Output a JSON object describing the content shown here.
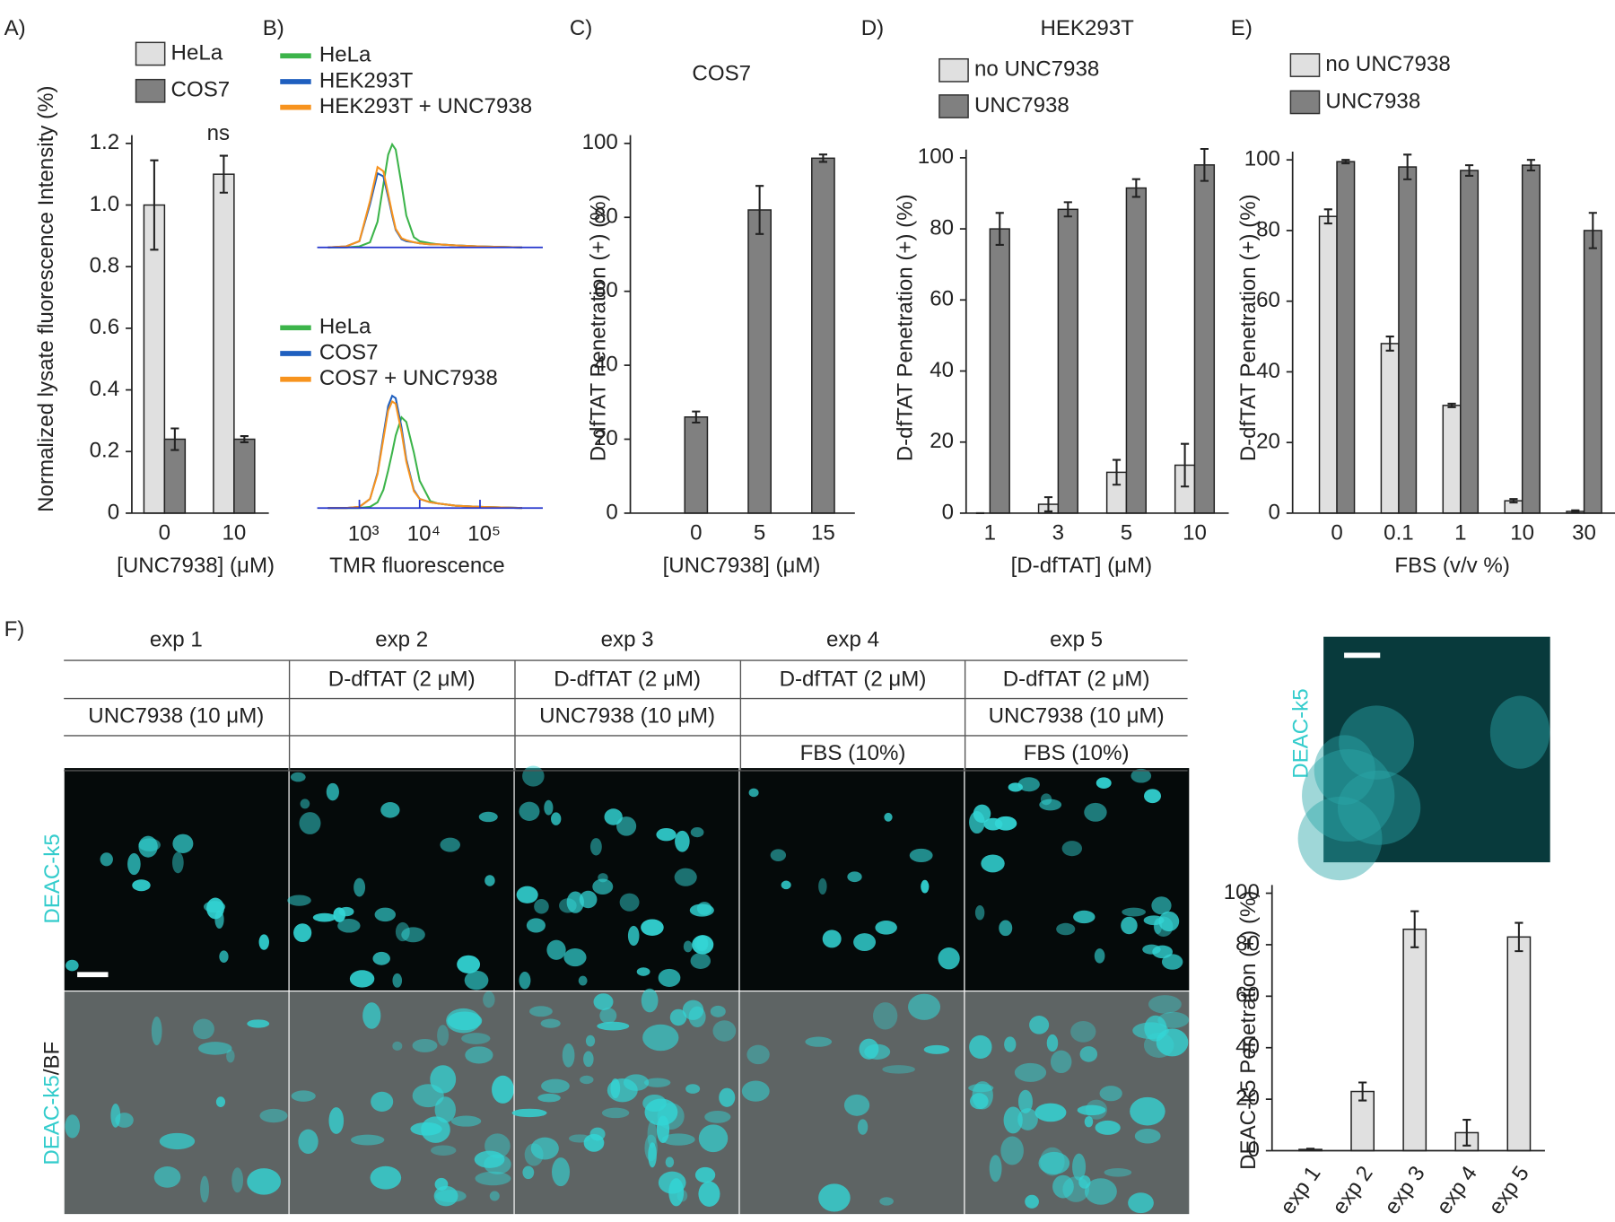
{
  "chart_data": [
    {
      "panel": "A)",
      "type": "bar",
      "categories": [
        "0",
        "10"
      ],
      "series": [
        {
          "name": "HeLa",
          "color": "#e0e0e0",
          "values": [
            1.0,
            1.1
          ],
          "errors": [
            0.145,
            0.06
          ]
        },
        {
          "name": "COS7",
          "color": "#808080",
          "values": [
            0.24,
            0.24
          ],
          "errors": [
            0.035,
            0.01
          ]
        }
      ],
      "annotation": "ns",
      "xlabel": "[UNC7938] (μM)",
      "ylabel": "Normalized lysate fluorescence Intensity (%)",
      "ylim": [
        0,
        1.2
      ],
      "yticks": [
        0,
        0.2,
        0.4,
        0.6,
        0.8,
        {
          "value": 1,
          "label": "1.0"
        },
        1.2
      ]
    },
    {
      "panel": "B)",
      "type": "line",
      "xscale": "log",
      "xlim": [
        200,
        1100000
      ],
      "ylim": [
        0,
        100
      ],
      "x": [
        300,
        600,
        1000,
        1500,
        2000,
        2500,
        3000,
        3500,
        4000,
        5000,
        6000,
        8000,
        10000,
        15000,
        20000,
        40000,
        100000,
        500000
      ],
      "series": [
        {
          "name": "HeLa",
          "color": "#3cb44a",
          "values": [
            0,
            0,
            1,
            5,
            25,
            61,
            90,
            100,
            95,
            61,
            31,
            10,
            6,
            4,
            3,
            2,
            1,
            0
          ]
        },
        {
          "name": "HEK293T",
          "color": "#1f5fbf",
          "values": [
            0,
            1,
            6,
            42,
            72,
            69,
            49,
            31,
            17,
            8,
            6,
            5,
            4,
            3,
            3,
            2,
            1,
            0
          ]
        },
        {
          "name": "HEK293T + UNC7938",
          "color": "#f7931e",
          "values": [
            0,
            1,
            6,
            45,
            78,
            74,
            52,
            33,
            18,
            9,
            7,
            5,
            4,
            3,
            3,
            2,
            1,
            0
          ]
        }
      ]
    },
    {
      "type": "line",
      "xscale": "log",
      "xlim": [
        200,
        1100000
      ],
      "ylim": [
        0,
        100
      ],
      "xlabel": "TMR fluorescence",
      "xticks": [
        {
          "value": 1000,
          "label": "10³"
        },
        {
          "value": 10000,
          "label": "10⁴"
        },
        {
          "value": 100000,
          "label": "10⁵"
        }
      ],
      "x": [
        300,
        600,
        1000,
        1500,
        2000,
        2500,
        3000,
        3500,
        4000,
        5000,
        6000,
        8000,
        10000,
        15000,
        20000,
        40000,
        100000,
        500000
      ],
      "series": [
        {
          "name": "HeLa",
          "color": "#3cb44a",
          "values": [
            0,
            0,
            0,
            1,
            5,
            16,
            33,
            49,
            64,
            80,
            76,
            49,
            24,
            6,
            4,
            2,
            1,
            0
          ]
        },
        {
          "name": "COS7",
          "color": "#1f5fbf",
          "values": [
            0,
            0,
            1,
            8,
            31,
            64,
            90,
            99,
            97,
            71,
            43,
            16,
            8,
            5,
            4,
            2,
            1,
            0
          ]
        },
        {
          "name": "COS7 + UNC7938",
          "color": "#f7931e",
          "values": [
            0,
            0,
            1,
            8,
            30,
            61,
            86,
            94,
            92,
            67,
            41,
            15,
            8,
            5,
            4,
            2,
            1,
            0
          ]
        }
      ]
    },
    {
      "panel": "C)",
      "type": "bar",
      "title": "COS7",
      "categories": [
        "0",
        "5",
        "15"
      ],
      "series": [
        {
          "color": "#808080",
          "values": [
            26,
            82,
            96
          ],
          "errors": [
            1.5,
            6.5,
            1
          ]
        }
      ],
      "xlabel": "[UNC7938] (μM)",
      "ylabel": "D-dfTAT Penetration (+) (%)",
      "ylim": [
        0,
        100
      ],
      "yticks": [
        0,
        20,
        40,
        60,
        80,
        100
      ]
    },
    {
      "panel": "D)",
      "type": "bar",
      "title": "HEK293T",
      "categories": [
        "1",
        "3",
        "5",
        "10"
      ],
      "series": [
        {
          "name": "no UNC7938",
          "color": "#e0e0e0",
          "values": [
            0,
            2.5,
            11.5,
            13.5
          ],
          "errors": [
            0,
            2,
            3.5,
            6
          ]
        },
        {
          "name": "UNC7938",
          "color": "#808080",
          "values": [
            80,
            85.5,
            91.5,
            98
          ],
          "errors": [
            4.5,
            2,
            2.5,
            4.5
          ]
        }
      ],
      "xlabel": "[D-dfTAT] (μM)",
      "ylabel": "D-dfTAT Penetration (+) (%)",
      "ylim": [
        0,
        100
      ],
      "yticks": [
        0,
        20,
        40,
        60,
        80,
        100
      ]
    },
    {
      "panel": "E)",
      "type": "bar",
      "categories": [
        "0",
        "0.1",
        "1",
        "10",
        "30"
      ],
      "series": [
        {
          "name": "no UNC7938",
          "color": "#e0e0e0",
          "values": [
            84,
            48,
            30.5,
            3.5,
            0.5
          ],
          "errors": [
            2,
            2,
            0.5,
            0.5,
            0.3
          ]
        },
        {
          "name": "UNC7938",
          "color": "#808080",
          "values": [
            99.5,
            98,
            97,
            98.5,
            80
          ],
          "errors": [
            0.5,
            3.5,
            1.5,
            1.5,
            5
          ]
        }
      ],
      "xlabel": "FBS (v/v %)",
      "ylabel": "D-dfTAT Penetration (+) (%)",
      "ylim": [
        0,
        100
      ],
      "yticks": [
        0,
        20,
        40,
        60,
        80,
        100
      ]
    },
    {
      "type": "bar",
      "categories": [
        "exp 1",
        "exp 2",
        "exp 3",
        "exp 4",
        "exp 5"
      ],
      "series": [
        {
          "color": "#e0e0e0",
          "values": [
            0.5,
            23,
            86,
            7,
            83
          ],
          "errors": [
            0.3,
            3.5,
            7,
            5,
            5.5
          ]
        }
      ],
      "ylabel": "DEAC-k5 Penetration (+) (%)",
      "ylim": [
        0,
        100
      ],
      "yticks": [
        0,
        20,
        40,
        60,
        80,
        100
      ]
    }
  ],
  "table": {
    "panel": "F)",
    "header": [
      "exp 1",
      "exp 2",
      "exp 3",
      "exp 4",
      "exp 5"
    ],
    "rows": [
      [
        null,
        "D-dfTAT (2 μM)",
        "D-dfTAT (2 μM)",
        "D-dfTAT (2 μM)",
        "D-dfTAT (2 μM)"
      ],
      [
        "UNC7938 (10 μM)",
        null,
        "UNC7938 (10 μM)",
        null,
        "UNC7938 (10 μM)"
      ],
      [
        null,
        null,
        null,
        "FBS (10%)",
        "FBS (10%)"
      ]
    ]
  },
  "micrographs": {
    "rows": [
      "DEAC-k5",
      {
        "stain": "DEAC-k5",
        "suffix": "/BF"
      }
    ],
    "inset_label": "DEAC-k5"
  }
}
